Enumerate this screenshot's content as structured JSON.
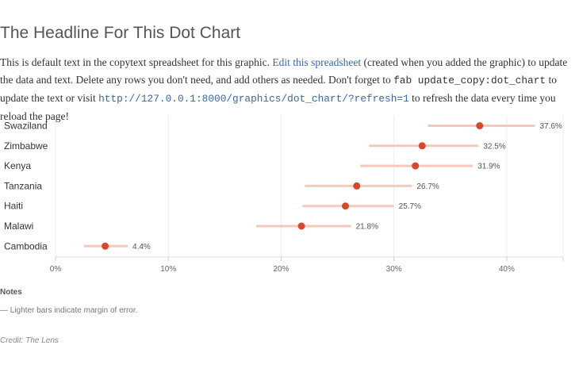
{
  "page": {
    "headline": "The Headline For This Dot Chart",
    "intro": {
      "t1": "This is default text in the copytext spreadsheet for this graphic. ",
      "link_spreadsheet": "Edit this spreadsheet",
      "t2": " (created when you added the graphic) to update the data and text. Delete any rows you don't need, and add others as needed. Don't forget to ",
      "code_cmd": "fab update_copy:dot_chart",
      "t3": " to update the text or visit ",
      "code_url": "http://127.0.0.1:8000/graphics/dot_chart/?refresh=1",
      "t4": " to refresh the data every time you reload the page!"
    },
    "notes_heading": "Notes",
    "notes_text": "— Lighter bars indicate margin of error.",
    "credit": "Credit: The Lens"
  },
  "colors": {
    "dot": "#d8472b",
    "bar": "#f3c9bd",
    "grid": "#eeeeee",
    "axis": "#dddddd",
    "label": "#333333",
    "value_label": "#555555",
    "tick_label": "#666666"
  },
  "chart_data": {
    "type": "scatter",
    "title": "The Headline For This Dot Chart",
    "categories": [
      "Swaziland",
      "Zimbabwe",
      "Kenya",
      "Tanzania",
      "Haiti",
      "Malawi",
      "Cambodia"
    ],
    "values": [
      37.6,
      32.5,
      31.9,
      26.7,
      25.7,
      21.8,
      4.4
    ],
    "value_labels": [
      "37.6%",
      "32.5%",
      "31.9%",
      "26.7%",
      "25.7%",
      "21.8%",
      "4.4%"
    ],
    "ranges": [
      [
        33.0,
        42.5
      ],
      [
        27.8,
        37.5
      ],
      [
        27.0,
        37.0
      ],
      [
        22.1,
        31.6
      ],
      [
        21.9,
        30.0
      ],
      [
        17.8,
        26.2
      ],
      [
        2.5,
        6.4
      ]
    ],
    "xlim": [
      0,
      45
    ],
    "x_ticks": [
      0,
      10,
      20,
      30,
      40
    ],
    "x_tick_labels": [
      "0%",
      "10%",
      "20%",
      "30%",
      "40%"
    ],
    "xlabel": "",
    "ylabel": "",
    "grid": true,
    "legend": "none"
  }
}
